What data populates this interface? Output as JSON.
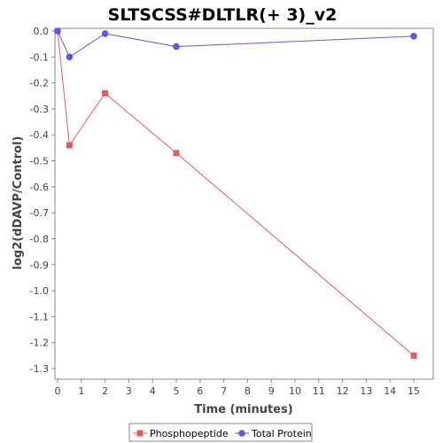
{
  "chart_data": {
    "type": "line",
    "title": "SLTSCSS#DLTLR(+ 3)_v2",
    "xlabel": "Time (minutes)",
    "ylabel": "log2(dDAVP/Control)",
    "xlim": [
      0,
      16
    ],
    "ylim": [
      -1.32,
      0
    ],
    "x_ticks": [
      0,
      1,
      2,
      3,
      4,
      5,
      6,
      7,
      8,
      9,
      10,
      11,
      12,
      13,
      14,
      15
    ],
    "y_ticks": [
      0.0,
      -0.1,
      -0.2,
      -0.3,
      -0.4,
      -0.5,
      -0.6,
      -0.7,
      -0.8,
      -0.9,
      -1.0,
      -1.1,
      -1.2,
      -1.3
    ],
    "y_tick_labels": [
      "0.0",
      "-0.1",
      "-0.2",
      "-0.3",
      "-0.4",
      "-0.5",
      "-0.6",
      "-0.7",
      "-0.8",
      "-0.9",
      "-1.0",
      "-1.1",
      "-1.2",
      "-1.3"
    ],
    "grid": false,
    "legend_position": "bottom",
    "series": [
      {
        "name": "Phosphopeptide",
        "color": "#e8595c",
        "marker": "square",
        "x": [
          0,
          0.5,
          2,
          5,
          15
        ],
        "y": [
          0.0,
          -0.44,
          -0.24,
          -0.47,
          -1.25
        ]
      },
      {
        "name": "Total Protein",
        "color": "#5a5ae8",
        "marker": "circle",
        "x": [
          0,
          0.5,
          2,
          5,
          15
        ],
        "y": [
          0.0,
          -0.1,
          -0.01,
          -0.06,
          -0.02
        ]
      }
    ]
  }
}
